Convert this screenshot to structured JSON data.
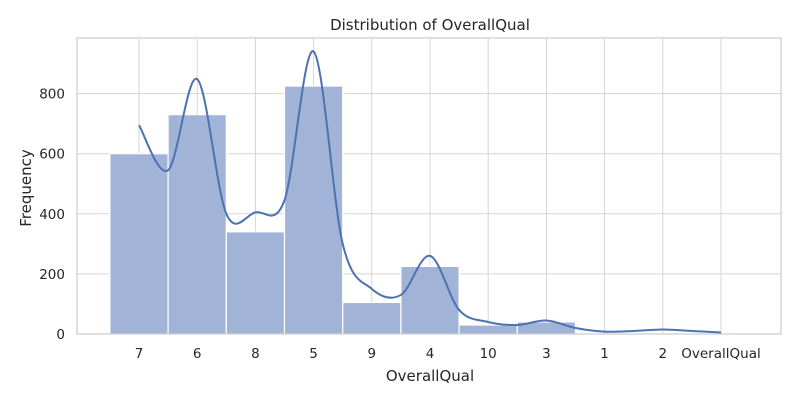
{
  "chart_data": {
    "type": "bar",
    "title": "Distribution of OverallQual",
    "xlabel": "OverallQual",
    "ylabel": "Frequency",
    "categories": [
      "7",
      "6",
      "8",
      "5",
      "9",
      "4",
      "10",
      "3",
      "1",
      "2",
      "OverallQual"
    ],
    "values": [
      600,
      730,
      340,
      825,
      105,
      225,
      30,
      40,
      0,
      0,
      0
    ],
    "ylim": [
      0,
      985
    ],
    "yticks": [
      0,
      200,
      400,
      600,
      800
    ],
    "grid": true,
    "kde": {
      "x": [
        0,
        0.5,
        1,
        1.5,
        2,
        2.5,
        3,
        3.5,
        4,
        4.5,
        5,
        5.5,
        6,
        6.5,
        7,
        7.5,
        8,
        8.5,
        9,
        9.5,
        10
      ],
      "y": [
        695,
        545,
        848,
        400,
        405,
        445,
        940,
        300,
        150,
        130,
        260,
        80,
        40,
        30,
        45,
        20,
        8,
        10,
        15,
        10,
        5
      ]
    },
    "colors": {
      "bar": "#a1b4d8",
      "kde": "#4c72b0",
      "grid": "#d5d5d5",
      "frame": "#cccccc"
    }
  }
}
